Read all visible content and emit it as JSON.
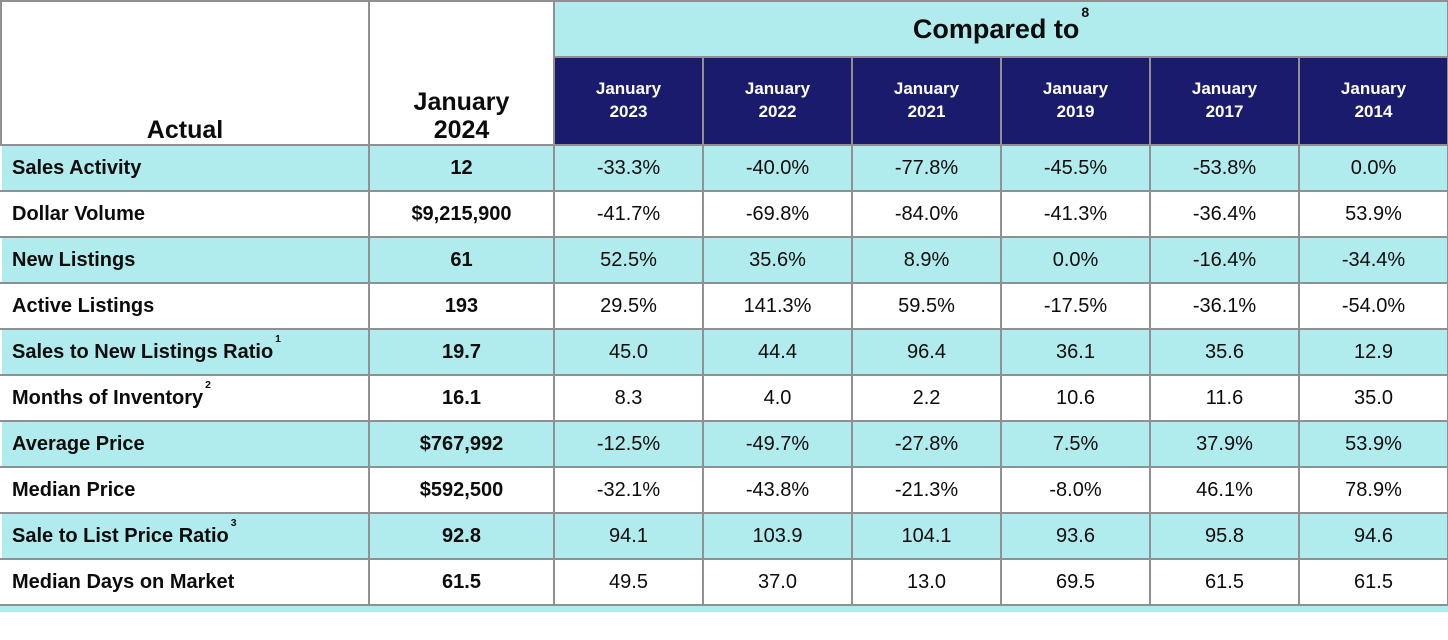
{
  "chart_data": {
    "type": "table",
    "corner_label": "Actual",
    "actual_column": {
      "month": "January",
      "year": "2024"
    },
    "compared_group": {
      "label": "Compared to",
      "footnote": "8"
    },
    "compare_columns": [
      {
        "month": "January",
        "year": "2023"
      },
      {
        "month": "January",
        "year": "2022"
      },
      {
        "month": "January",
        "year": "2021"
      },
      {
        "month": "January",
        "year": "2019"
      },
      {
        "month": "January",
        "year": "2017"
      },
      {
        "month": "January",
        "year": "2014"
      }
    ],
    "rows": [
      {
        "label": "Sales Activity",
        "sup": "",
        "actual": "12",
        "comps": [
          "-33.3%",
          "-40.0%",
          "-77.8%",
          "-45.5%",
          "-53.8%",
          "0.0%"
        ]
      },
      {
        "label": "Dollar Volume",
        "sup": "",
        "actual": "$9,215,900",
        "comps": [
          "-41.7%",
          "-69.8%",
          "-84.0%",
          "-41.3%",
          "-36.4%",
          "53.9%"
        ]
      },
      {
        "label": "New Listings",
        "sup": "",
        "actual": "61",
        "comps": [
          "52.5%",
          "35.6%",
          "8.9%",
          "0.0%",
          "-16.4%",
          "-34.4%"
        ]
      },
      {
        "label": "Active Listings",
        "sup": "",
        "actual": "193",
        "comps": [
          "29.5%",
          "141.3%",
          "59.5%",
          "-17.5%",
          "-36.1%",
          "-54.0%"
        ]
      },
      {
        "label": "Sales to New Listings Ratio",
        "sup": "1",
        "actual": "19.7",
        "comps": [
          "45.0",
          "44.4",
          "96.4",
          "36.1",
          "35.6",
          "12.9"
        ]
      },
      {
        "label": "Months of Inventory",
        "sup": "2",
        "actual": "16.1",
        "comps": [
          "8.3",
          "4.0",
          "2.2",
          "10.6",
          "11.6",
          "35.0"
        ]
      },
      {
        "label": "Average Price",
        "sup": "",
        "actual": "$767,992",
        "comps": [
          "-12.5%",
          "-49.7%",
          "-27.8%",
          "7.5%",
          "37.9%",
          "53.9%"
        ]
      },
      {
        "label": "Median Price",
        "sup": "",
        "actual": "$592,500",
        "comps": [
          "-32.1%",
          "-43.8%",
          "-21.3%",
          "-8.0%",
          "46.1%",
          "78.9%"
        ]
      },
      {
        "label": "Sale to List Price Ratio",
        "sup": "3",
        "actual": "92.8",
        "comps": [
          "94.1",
          "103.9",
          "104.1",
          "93.6",
          "95.8",
          "94.6"
        ]
      },
      {
        "label": "Median Days on Market",
        "sup": "",
        "actual": "61.5",
        "comps": [
          "49.5",
          "37.0",
          "13.0",
          "69.5",
          "61.5",
          "61.5"
        ]
      }
    ]
  },
  "colors": {
    "band_cyan": "#B0EBED",
    "header_navy": "#1B1B6D",
    "border_gray": "#8F9093",
    "text_black": "#0C0C0C"
  }
}
